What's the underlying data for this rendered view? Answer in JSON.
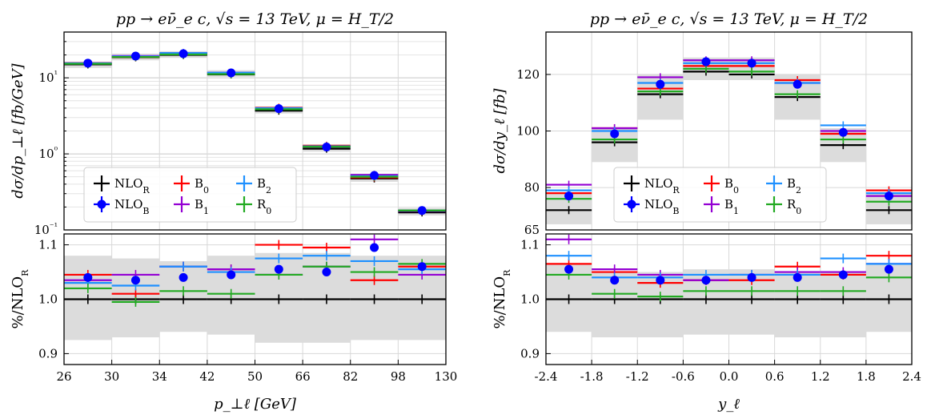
{
  "colors": {
    "NLO_R": "#000000",
    "NLO_B": "#0000ff",
    "B0": "#ff0000",
    "B1": "#9400d3",
    "B2": "#1e90ff",
    "R0": "#22aa22",
    "band": "#dcdcdc"
  },
  "legend_labels": [
    "NLO_R",
    "NLO_B",
    "B_0",
    "B_1",
    "B_2",
    "R_0"
  ],
  "chart_data": [
    {
      "type": "line",
      "title": "pp → eν̄_e c, √s = 13 TeV, μ = H_T/2",
      "xlabel": "p_⊥ℓ [GeV]",
      "ylabel": "dσ/dp_⊥ℓ [fb/GeV]",
      "ratio_ylabel": "%/NLO_R",
      "yscale": "log",
      "ylim": [
        0.1,
        40
      ],
      "ratio_ylim": [
        0.88,
        1.12
      ],
      "bin_edges": [
        26,
        30,
        34,
        42,
        50,
        66,
        82,
        98,
        130
      ],
      "x_tick_labels": [
        "26",
        "30",
        "34",
        "42",
        "50",
        "66",
        "82",
        "98",
        "130"
      ],
      "y_tick_labels": [
        "10⁻¹",
        "10⁰",
        "10¹"
      ],
      "ratio_tick_labels": [
        "0.9",
        "1.0",
        "1.1"
      ],
      "grid": true,
      "legend_position": "lower-left",
      "main_band": [
        [
          13.5,
          16.3
        ],
        [
          17.0,
          20.8
        ],
        [
          18.3,
          22.4
        ],
        [
          10.3,
          12.6
        ],
        [
          3.4,
          4.2
        ],
        [
          1.07,
          1.33
        ],
        [
          0.43,
          0.55
        ],
        [
          0.155,
          0.195
        ]
      ],
      "series": [
        {
          "name": "NLO_R",
          "values": [
            15.0,
            18.6,
            20.0,
            11.1,
            3.7,
            1.17,
            0.475,
            0.17
          ]
        },
        {
          "name": "NLO_B",
          "values": [
            15.6,
            19.3,
            20.8,
            11.6,
            3.93,
            1.23,
            0.52,
            0.18
          ]
        },
        {
          "name": "B_0",
          "values": [
            15.6,
            18.8,
            20.6,
            11.7,
            4.05,
            1.28,
            0.49,
            0.18
          ]
        },
        {
          "name": "B_1",
          "values": [
            15.6,
            19.4,
            21.2,
            11.7,
            3.86,
            1.24,
            0.53,
            0.177
          ]
        },
        {
          "name": "B_2",
          "values": [
            15.5,
            19.1,
            21.2,
            11.7,
            3.99,
            1.26,
            0.51,
            0.18
          ]
        },
        {
          "name": "R_0",
          "values": [
            15.3,
            18.8,
            20.3,
            11.2,
            3.86,
            1.24,
            0.5,
            0.18
          ]
        }
      ],
      "ratio_band": [
        [
          0.925,
          1.08
        ],
        [
          0.93,
          1.075
        ],
        [
          0.94,
          1.07
        ],
        [
          0.935,
          1.08
        ],
        [
          0.92,
          1.085
        ],
        [
          0.92,
          1.085
        ],
        [
          0.925,
          1.08
        ],
        [
          0.925,
          1.08
        ]
      ],
      "ratio_series": [
        {
          "name": "NLO_R",
          "values": [
            1.0,
            1.0,
            1.0,
            1.0,
            1.0,
            1.0,
            1.0,
            1.0
          ]
        },
        {
          "name": "B_0",
          "values": [
            1.045,
            1.01,
            1.06,
            1.055,
            1.1,
            1.095,
            1.035,
            1.06
          ]
        },
        {
          "name": "B_1",
          "values": [
            1.035,
            1.045,
            1.06,
            1.055,
            1.045,
            1.06,
            1.11,
            1.045
          ]
        },
        {
          "name": "B_2",
          "values": [
            1.03,
            1.025,
            1.06,
            1.05,
            1.075,
            1.08,
            1.07,
            1.055
          ]
        },
        {
          "name": "R_0",
          "values": [
            1.02,
            0.995,
            1.015,
            1.01,
            1.045,
            1.06,
            1.05,
            1.065
          ]
        },
        {
          "name": "NLO_B",
          "values": [
            1.04,
            1.035,
            1.04,
            1.045,
            1.055,
            1.05,
            1.095,
            1.06
          ]
        }
      ]
    },
    {
      "type": "line",
      "title": "pp → eν̄_e c, √s = 13 TeV, μ = H_T/2",
      "xlabel": "y_ℓ",
      "ylabel": "dσ/dy_ℓ [fb]",
      "ratio_ylabel": "%/NLO_R",
      "yscale": "linear",
      "ylim": [
        65,
        135
      ],
      "ratio_ylim": [
        0.88,
        1.12
      ],
      "bin_edges": [
        -2.4,
        -1.8,
        -1.2,
        -0.6,
        0.0,
        0.6,
        1.2,
        1.8,
        2.4
      ],
      "x_tick_labels": [
        "-2.4",
        "-1.8",
        "-1.2",
        "-0.6",
        "0.0",
        "0.6",
        "1.2",
        "1.8",
        "2.4"
      ],
      "y_tick_labels": [
        "65",
        "80",
        "100",
        "120"
      ],
      "y_ticks": [
        65,
        80,
        100,
        120
      ],
      "ratio_tick_labels": [
        "0.9",
        "1.0",
        "1.1"
      ],
      "grid": true,
      "legend_position": "lower-center",
      "main_band": [
        [
          67,
          78
        ],
        [
          89,
          101
        ],
        [
          104,
          120
        ],
        [
          118,
          126
        ],
        [
          118,
          126
        ],
        [
          104,
          120
        ],
        [
          89,
          101
        ],
        [
          67,
          78
        ]
      ],
      "series": [
        {
          "name": "NLO_R",
          "values": [
            72,
            96,
            113,
            121,
            120,
            112,
            95,
            72
          ]
        },
        {
          "name": "NLO_B",
          "values": [
            77,
            99,
            116.5,
            124.5,
            124,
            116.5,
            99.5,
            77
          ]
        },
        {
          "name": "B_0",
          "values": [
            78,
            101,
            115,
            123,
            123,
            118,
            99,
            79
          ]
        },
        {
          "name": "B_1",
          "values": [
            81,
            101,
            119,
            125,
            125,
            117,
            100,
            77
          ]
        },
        {
          "name": "B_2",
          "values": [
            79,
            100,
            117,
            124,
            124,
            117,
            102,
            78
          ]
        },
        {
          "name": "R_0",
          "values": [
            76,
            97,
            114,
            122,
            121,
            113,
            97,
            75
          ]
        }
      ],
      "ratio_band": [
        [
          0.94,
          1.065
        ],
        [
          0.93,
          1.05
        ],
        [
          0.93,
          1.05
        ],
        [
          0.935,
          1.055
        ],
        [
          0.935,
          1.055
        ],
        [
          0.93,
          1.05
        ],
        [
          0.93,
          1.05
        ],
        [
          0.94,
          1.065
        ]
      ],
      "ratio_series": [
        {
          "name": "NLO_R",
          "values": [
            1.0,
            1.0,
            1.0,
            1.0,
            1.0,
            1.0,
            1.0,
            1.0
          ]
        },
        {
          "name": "B_0",
          "values": [
            1.065,
            1.05,
            1.03,
            1.035,
            1.035,
            1.06,
            1.045,
            1.08
          ]
        },
        {
          "name": "B_1",
          "values": [
            1.11,
            1.055,
            1.045,
            1.035,
            1.045,
            1.05,
            1.05,
            1.065
          ]
        },
        {
          "name": "B_2",
          "values": [
            1.08,
            1.04,
            1.04,
            1.045,
            1.045,
            1.045,
            1.075,
            1.065
          ]
        },
        {
          "name": "R_0",
          "values": [
            1.045,
            1.01,
            1.005,
            1.015,
            1.015,
            1.015,
            1.015,
            1.04
          ]
        },
        {
          "name": "NLO_B",
          "values": [
            1.055,
            1.035,
            1.035,
            1.035,
            1.04,
            1.04,
            1.045,
            1.055
          ]
        }
      ]
    }
  ]
}
